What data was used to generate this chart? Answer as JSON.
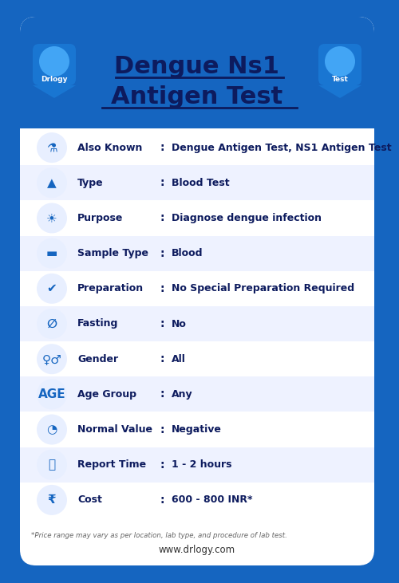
{
  "title_line1": "Dengue Ns1",
  "title_line2": "Antigen Test",
  "bg_color": "#1565C0",
  "card_color": "#FFFFFF",
  "alt_row_color": "#EEF2FF",
  "title_color": "#0D1B5E",
  "label_color": "#0D1B5E",
  "value_color": "#0D1B5E",
  "icon_bg_color": "#E8EFFF",
  "icon_fg_color": "#1565C0",
  "website": "www.drlogy.com",
  "footnote": "*Price range may vary as per location, lab type, and procedure of lab test.",
  "rows": [
    {
      "label": "Also Known",
      "value": "Dengue Antigen Test, NS1 Antigen Test",
      "alt": false
    },
    {
      "label": "Type",
      "value": "Blood Test",
      "alt": true
    },
    {
      "label": "Purpose",
      "value": "Diagnose dengue infection",
      "alt": false
    },
    {
      "label": "Sample Type",
      "value": "Blood",
      "alt": true
    },
    {
      "label": "Preparation",
      "value": "No Special Preparation Required",
      "alt": false
    },
    {
      "label": "Fasting",
      "value": "No",
      "alt": true
    },
    {
      "label": "Gender",
      "value": "All",
      "alt": false
    },
    {
      "label": "Age Group",
      "value": "Any",
      "alt": true
    },
    {
      "label": "Normal Value",
      "value": "Negative",
      "alt": false
    },
    {
      "label": "Report Time",
      "value": "1 - 2 hours",
      "alt": true
    },
    {
      "label": "Cost",
      "value": "600 - 800 INR*",
      "alt": false
    }
  ]
}
